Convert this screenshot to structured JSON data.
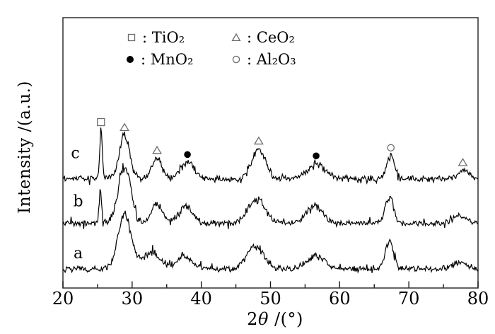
{
  "figure": {
    "background_color": "#ffffff",
    "curve_color": "#000000",
    "border_color": "#3c3c3c",
    "open_marker_color": "#6b6b6b"
  },
  "legend": {
    "items": [
      {
        "symbol": "square-open",
        "phase": "TiO₂",
        "label": ": TiO₂"
      },
      {
        "symbol": "triangle-open",
        "phase": "CeO₂",
        "label": ": CeO₂"
      },
      {
        "symbol": "circle-filled",
        "phase": "MnO₂",
        "label": ": MnO₂"
      },
      {
        "symbol": "circle-open",
        "phase": "Al₂O₃",
        "label": ": Al₂O₃"
      }
    ]
  },
  "chart_data": {
    "type": "line",
    "title": "",
    "xlabel": "2θ /(°)",
    "xlabel_parts": [
      "2",
      "θ",
      " /(°)"
    ],
    "ylabel": "Intensity /(a.u.)",
    "xlim": [
      20,
      80
    ],
    "ylim_units": [
      0,
      100
    ],
    "x_major_ticks": [
      20,
      30,
      40,
      50,
      60,
      70,
      80
    ],
    "x_minor_ticks": [
      25,
      35,
      45,
      55,
      65,
      75
    ],
    "y_axis_note": "arbitrary units, no y ticks",
    "grid": false,
    "legend_position": "top-inside",
    "series": [
      {
        "name": "a",
        "baseline": 7,
        "label_pos": [
          22.2,
          11
        ],
        "peaks": [
          [
            28.9,
            20,
            0.95
          ],
          [
            32.8,
            6,
            1.3
          ],
          [
            37.6,
            4.5,
            1.2
          ],
          [
            47.8,
            8,
            1.3
          ],
          [
            56.5,
            5,
            1.3
          ],
          [
            67.2,
            10,
            0.6
          ],
          [
            77.3,
            2.5,
            1.0
          ]
        ]
      },
      {
        "name": "b",
        "baseline": 24,
        "label_pos": [
          22.2,
          30.2
        ],
        "peaks": [
          [
            25.4,
            12,
            0.17
          ],
          [
            28.9,
            21,
            0.9
          ],
          [
            33.6,
            7,
            0.8
          ],
          [
            37.8,
            6,
            1.0
          ],
          [
            48.0,
            9,
            1.2
          ],
          [
            56.4,
            6,
            1.2
          ],
          [
            67.2,
            9.5,
            0.6
          ],
          [
            77.4,
            2.5,
            1.0
          ]
        ]
      },
      {
        "name": "c",
        "baseline": 40.5,
        "label_pos": [
          21.8,
          48
        ],
        "peaks": [
          [
            25.5,
            18,
            0.17
          ],
          [
            28.9,
            16,
            0.75
          ],
          [
            33.6,
            7.5,
            0.7
          ],
          [
            38.0,
            6,
            1.0
          ],
          [
            48.3,
            11,
            0.95
          ],
          [
            56.6,
            5.5,
            1.2
          ],
          [
            67.4,
            8.5,
            0.55
          ],
          [
            77.8,
            3,
            0.8
          ]
        ]
      }
    ],
    "markers": [
      {
        "two_theta": 25.5,
        "symbol": "square-open",
        "phase": "TiO₂"
      },
      {
        "two_theta": 28.9,
        "symbol": "triangle-open",
        "phase": "CeO₂"
      },
      {
        "two_theta": 33.6,
        "symbol": "triangle-open",
        "phase": "CeO₂"
      },
      {
        "two_theta": 38.0,
        "symbol": "circle-filled",
        "phase": "MnO₂"
      },
      {
        "two_theta": 48.3,
        "symbol": "triangle-open",
        "phase": "CeO₂"
      },
      {
        "two_theta": 56.6,
        "symbol": "circle-filled",
        "phase": "MnO₂"
      },
      {
        "two_theta": 67.4,
        "symbol": "circle-open",
        "phase": "Al₂O₃"
      },
      {
        "two_theta": 77.8,
        "symbol": "triangle-open",
        "phase": "CeO₂"
      }
    ]
  }
}
